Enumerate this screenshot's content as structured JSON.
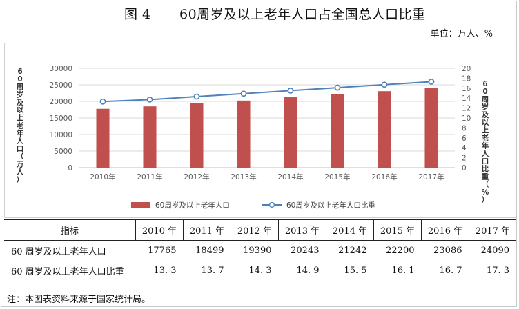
{
  "title": {
    "figure": "图 4",
    "text": "60周岁及以上老年人口占全国总人口比重"
  },
  "unit": "单位：万人、%",
  "note": "注：本图表资料来源于国家统计局。",
  "colors": {
    "bar": "#c0504d",
    "line": "#4f81bd",
    "grid": "#d9d9d9",
    "axis_text": "#595959"
  },
  "chart_data": {
    "type": "bar",
    "categories": [
      "2010年",
      "2011年",
      "2012年",
      "2013年",
      "2014年",
      "2015年",
      "2016年",
      "2017年"
    ],
    "series": [
      {
        "name": "60周岁及以上老年人口",
        "type": "bar",
        "axis": "left",
        "values": [
          17765,
          18499,
          19390,
          20243,
          21242,
          22200,
          23086,
          24090
        ]
      },
      {
        "name": "60周岁及以上老年人口比重",
        "type": "line",
        "axis": "right",
        "values": [
          13.3,
          13.7,
          14.3,
          14.9,
          15.5,
          16.1,
          16.7,
          17.3
        ]
      }
    ],
    "ylabel_left": "60周岁及以上老年人口（万人）",
    "ylabel_right": "60周岁及以上老年人口比重（%）",
    "ylim_left": [
      0,
      30000
    ],
    "yticks_left": [
      "0",
      "5000",
      "10000",
      "15000",
      "20000",
      "25000",
      "30000"
    ],
    "ylim_right": [
      0,
      20
    ],
    "yticks_right": [
      "0",
      "2",
      "4",
      "6",
      "8",
      "10",
      "12",
      "14",
      "16",
      "18",
      "20"
    ],
    "grid": true,
    "legend_position": "bottom"
  },
  "table": {
    "header": [
      "指标",
      "2010 年",
      "2011 年",
      "2012 年",
      "2013 年",
      "2014 年",
      "2015 年",
      "2016 年",
      "2017 年"
    ],
    "rows": [
      [
        "60 周岁及以上老年人口",
        "17765",
        "18499",
        "19390",
        "20243",
        "21242",
        "22200",
        "23086",
        "24090"
      ],
      [
        "60 周岁及以上老年人口比重",
        "13. 3",
        "13. 7",
        "14. 3",
        "14. 9",
        "15. 5",
        "16. 1",
        "16. 7",
        "17. 3"
      ]
    ]
  }
}
